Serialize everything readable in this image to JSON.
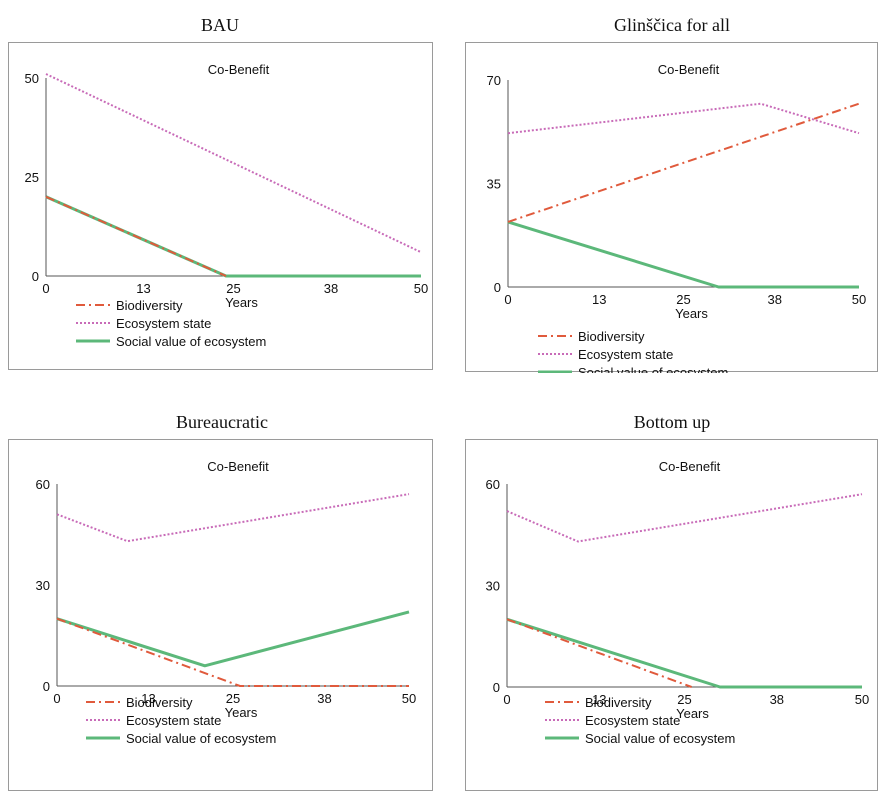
{
  "chart_data": [
    {
      "type": "line",
      "panel_title": "BAU",
      "title": "Co-Benefit",
      "xlabel": "Years",
      "x_ticks": [
        "0",
        "13",
        "25",
        "38",
        "50"
      ],
      "y_ticks": [
        "0",
        "25",
        "50"
      ],
      "xlim": [
        0,
        50
      ],
      "ylim": [
        0,
        50
      ],
      "series": [
        {
          "name": "Biodiversity",
          "style": "dashdot",
          "color": "#e05a3c",
          "x": [
            0,
            24
          ],
          "y": [
            20,
            0
          ]
        },
        {
          "name": "Ecosystem state",
          "style": "dotted",
          "color": "#c86bb8",
          "x": [
            0,
            50
          ],
          "y": [
            51,
            6
          ]
        },
        {
          "name": "Social value of ecosystem",
          "style": "solid",
          "color": "#5cb87a",
          "x": [
            0,
            24,
            50
          ],
          "y": [
            20,
            0,
            0
          ]
        }
      ]
    },
    {
      "type": "line",
      "panel_title": "Glinščica for all",
      "title": "Co-Benefit",
      "xlabel": "Years",
      "x_ticks": [
        "0",
        "13",
        "25",
        "38",
        "50"
      ],
      "y_ticks": [
        "0",
        "35",
        "70"
      ],
      "xlim": [
        0,
        50
      ],
      "ylim": [
        0,
        70
      ],
      "series": [
        {
          "name": "Biodiversity",
          "style": "dashdot",
          "color": "#e05a3c",
          "x": [
            0,
            50
          ],
          "y": [
            22,
            62
          ]
        },
        {
          "name": "Ecosystem state",
          "style": "dotted",
          "color": "#c86bb8",
          "x": [
            0,
            36,
            50
          ],
          "y": [
            52,
            62,
            52
          ]
        },
        {
          "name": "Social value of ecosystem",
          "style": "solid",
          "color": "#5cb87a",
          "x": [
            0,
            30,
            50
          ],
          "y": [
            22,
            0,
            0
          ]
        }
      ]
    },
    {
      "type": "line",
      "panel_title": "Bureaucratic",
      "title": "Co-Benefit",
      "xlabel": "Years",
      "x_ticks": [
        "0",
        "13",
        "25",
        "38",
        "50"
      ],
      "y_ticks": [
        "0",
        "30",
        "60"
      ],
      "xlim": [
        0,
        50
      ],
      "ylim": [
        0,
        60
      ],
      "series": [
        {
          "name": "Biodiversity",
          "style": "dashdot",
          "color": "#e05a3c",
          "x": [
            0,
            26,
            50
          ],
          "y": [
            20,
            0,
            0
          ]
        },
        {
          "name": "Ecosystem state",
          "style": "dotted",
          "color": "#c86bb8",
          "x": [
            0,
            10,
            50
          ],
          "y": [
            51,
            43,
            57
          ]
        },
        {
          "name": "Social value of ecosystem",
          "style": "solid",
          "color": "#5cb87a",
          "x": [
            0,
            21,
            50
          ],
          "y": [
            20,
            6,
            22
          ]
        }
      ]
    },
    {
      "type": "line",
      "panel_title": "Bottom up",
      "title": "Co-Benefit",
      "xlabel": "Years",
      "x_ticks": [
        "0",
        "13",
        "25",
        "38",
        "50"
      ],
      "y_ticks": [
        "0",
        "30",
        "60"
      ],
      "xlim": [
        0,
        50
      ],
      "ylim": [
        0,
        60
      ],
      "series": [
        {
          "name": "Biodiversity",
          "style": "dashdot",
          "color": "#e05a3c",
          "x": [
            0,
            26
          ],
          "y": [
            20,
            0
          ]
        },
        {
          "name": "Ecosystem state",
          "style": "dotted",
          "color": "#c86bb8",
          "x": [
            0,
            10,
            50
          ],
          "y": [
            52,
            43,
            57
          ]
        },
        {
          "name": "Social value of ecosystem",
          "style": "solid",
          "color": "#5cb87a",
          "x": [
            0,
            30,
            50
          ],
          "y": [
            20,
            0,
            0
          ]
        }
      ]
    }
  ]
}
